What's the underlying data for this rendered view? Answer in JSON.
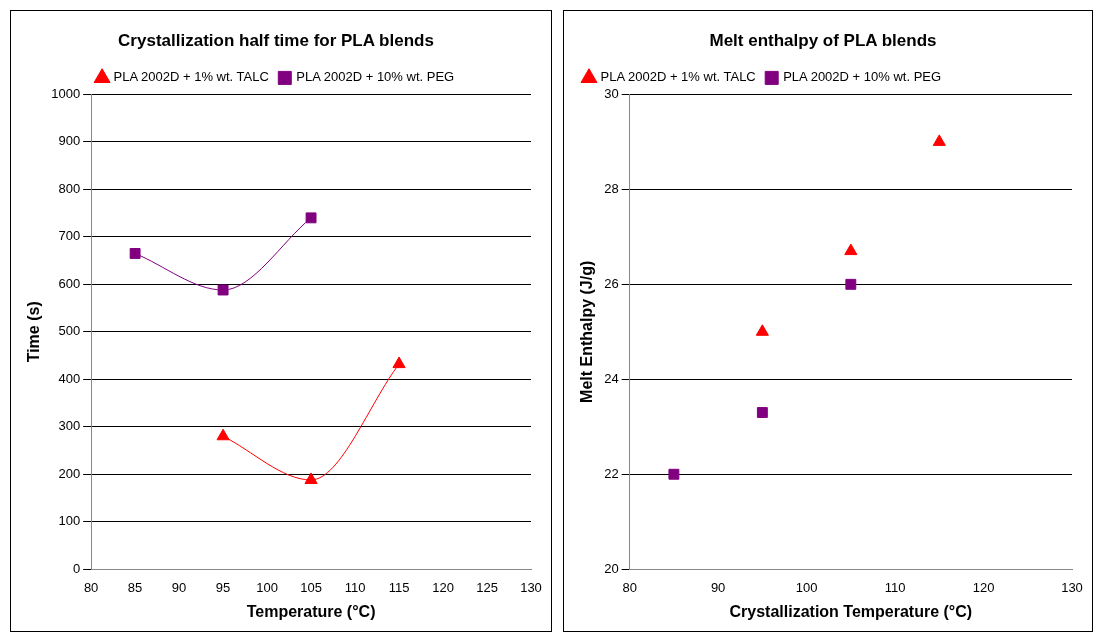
{
  "chart_data": [
    {
      "type": "line",
      "title": "Crystallization half time for PLA blends",
      "xlabel": "Temperature (°C)",
      "ylabel": "Time (s)",
      "xlim": [
        80,
        130
      ],
      "xticks": [
        80,
        85,
        90,
        95,
        100,
        105,
        110,
        115,
        120,
        125,
        130
      ],
      "ylim": [
        0,
        1000
      ],
      "yticks": [
        0,
        100,
        200,
        300,
        400,
        500,
        600,
        700,
        800,
        900,
        1000
      ],
      "grid": "y",
      "legend": "top",
      "series": [
        {
          "name": "PLA 2002D + 1% wt. TALC",
          "color": "#ff0000",
          "marker": "triangle",
          "x": [
            95,
            105,
            115
          ],
          "values": [
            280,
            188,
            432
          ]
        },
        {
          "name": "PLA 2002D + 10% wt. PEG",
          "color": "#800080",
          "marker": "square",
          "x": [
            85,
            95,
            105
          ],
          "values": [
            665,
            588,
            740
          ]
        }
      ]
    },
    {
      "type": "scatter",
      "title": "Melt enthalpy of PLA blends",
      "xlabel": "Crystallization Temperature (°C)",
      "ylabel": "Melt Enthalpy (J/g)",
      "xlim": [
        80,
        130
      ],
      "xticks": [
        80,
        90,
        100,
        110,
        120,
        130
      ],
      "ylim": [
        20,
        30
      ],
      "yticks": [
        20,
        22,
        24,
        26,
        28,
        30
      ],
      "grid": "y",
      "legend": "top left",
      "series": [
        {
          "name": "PLA 2002D + 1% wt. TALC",
          "color": "#ff0000",
          "marker": "triangle",
          "x": [
            95,
            105,
            115
          ],
          "values": [
            25.0,
            26.7,
            29.0
          ]
        },
        {
          "name": "PLA 2002D + 10% wt. PEG",
          "color": "#800080",
          "marker": "square",
          "x": [
            85,
            95,
            105
          ],
          "values": [
            22.0,
            23.3,
            26.0
          ]
        }
      ]
    }
  ]
}
